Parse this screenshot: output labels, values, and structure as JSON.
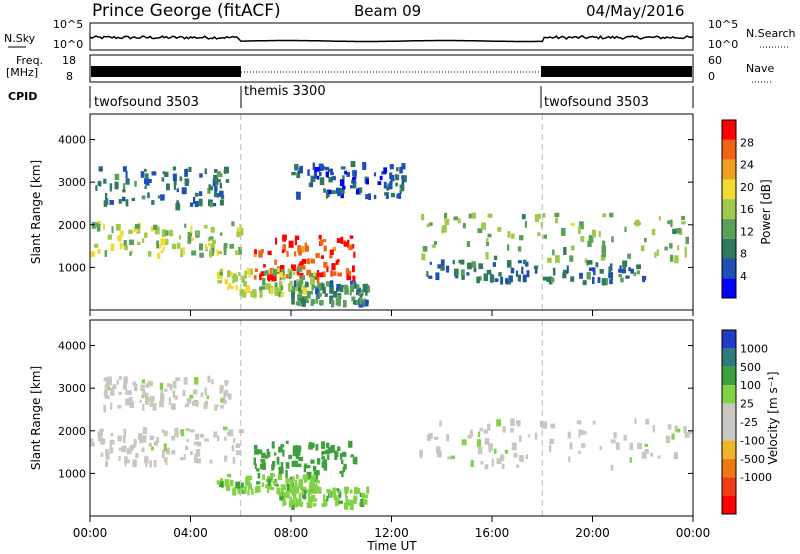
{
  "header": {
    "station": "Prince George (fitACF)",
    "beam": "Beam 09",
    "date": "04/May/2016"
  },
  "strips": {
    "nsky_label": "N.Sky",
    "nsky_ticks": [
      "10^5",
      "10^0"
    ],
    "nsearch_label": "N.Search",
    "nsearch_ticks": [
      "10^5",
      "10^0"
    ],
    "freq_label_1": "Freq.",
    "freq_label_2": "[MHz]",
    "freq_ticks": [
      "18",
      "8"
    ],
    "nave_label": "Nave",
    "nave_ticks": [
      "60",
      "0"
    ],
    "cpid_label": "CPID",
    "cpid_segments": [
      {
        "name": "twofsound 3503",
        "start": 0,
        "end": 6
      },
      {
        "name": "themis 3300",
        "start": 6,
        "end": 18
      },
      {
        "name": "twofsound 3503",
        "start": 18,
        "end": 24
      }
    ]
  },
  "colors": {
    "power_scale": [
      "#0000ff",
      "#1e4fb4",
      "#2f7a5a",
      "#5aa05a",
      "#a0c84a",
      "#f0dc32",
      "#f0a020",
      "#f06414",
      "#ff0000"
    ],
    "velocity_scale": [
      "#1e3cc8",
      "#2f7a7a",
      "#3ca03c",
      "#82d246",
      "#c8c8c0",
      "#c8c8c0",
      "#f0b428",
      "#f07814",
      "#f03c14",
      "#ff0000"
    ]
  },
  "chart_data": [
    {
      "type": "heatmap",
      "name": "power",
      "ylabel": "Slant Range [km]",
      "yticks": [
        "1000",
        "2000",
        "3000",
        "4000"
      ],
      "ylim": [
        0,
        4600
      ],
      "xlim": [
        0,
        24
      ],
      "colorbar_label": "Power [dB]",
      "colorbar_ticks": [
        "4",
        "8",
        "12",
        "16",
        "20",
        "24",
        "28"
      ],
      "colorbar_range": [
        0,
        32
      ],
      "regions": [
        {
          "t0": 0.0,
          "t1": 6.0,
          "r0": 1300,
          "r1": 2100,
          "value": 16
        },
        {
          "t0": 0.2,
          "t1": 5.5,
          "r0": 2500,
          "r1": 3400,
          "value": 8
        },
        {
          "t0": 6.5,
          "t1": 10.5,
          "r0": 800,
          "r1": 1800,
          "value": 28
        },
        {
          "t0": 5.0,
          "t1": 9.0,
          "r0": 400,
          "r1": 1000,
          "value": 16
        },
        {
          "t0": 8.0,
          "t1": 11.0,
          "r0": 200,
          "r1": 700,
          "value": 10
        },
        {
          "t0": 13.0,
          "t1": 24.0,
          "r0": 1200,
          "r1": 2300,
          "value": 14
        },
        {
          "t0": 13.0,
          "t1": 22.0,
          "r0": 700,
          "r1": 1200,
          "value": 8
        },
        {
          "t0": 8.0,
          "t1": 12.5,
          "r0": 2700,
          "r1": 3500,
          "value": 6
        }
      ]
    },
    {
      "type": "heatmap",
      "name": "velocity",
      "ylabel": "Slant Range [km]",
      "yticks": [
        "1000",
        "2000",
        "3000",
        "4000"
      ],
      "ylim": [
        0,
        4600
      ],
      "xlim": [
        0,
        24
      ],
      "xlabel": "Time UT",
      "xticks": [
        "00:00",
        "04:00",
        "08:00",
        "12:00",
        "16:00",
        "20:00",
        "00:00"
      ],
      "colorbar_label": "Velocity [m s⁻¹]",
      "colorbar_ticks": [
        "1000",
        "500",
        "100",
        "25",
        "-25",
        "-100",
        "-500",
        "-1000"
      ],
      "regions": [
        {
          "t0": 0.0,
          "t1": 6.0,
          "r0": 1300,
          "r1": 2100,
          "value": 0
        },
        {
          "t0": 6.5,
          "t1": 10.5,
          "r0": 1000,
          "r1": 1800,
          "value": 300
        },
        {
          "t0": 5.0,
          "t1": 9.0,
          "r0": 600,
          "r1": 1000,
          "value": 80
        },
        {
          "t0": 7.5,
          "t1": 11.0,
          "r0": 300,
          "r1": 700,
          "value": 80
        },
        {
          "t0": 13.0,
          "t1": 24.0,
          "r0": 1200,
          "r1": 2300,
          "value": 0
        },
        {
          "t0": 0.5,
          "t1": 5.5,
          "r0": 2600,
          "r1": 3300,
          "value": 0
        }
      ]
    }
  ]
}
